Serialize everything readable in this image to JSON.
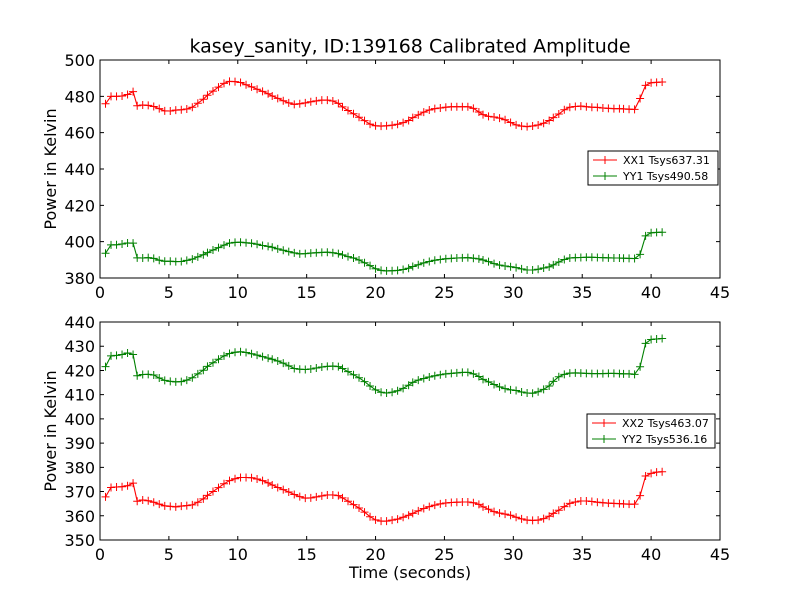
{
  "chart_data": [
    {
      "type": "line",
      "title": "kasey_sanity, ID:139168 Calibrated Amplitude",
      "xlabel": "",
      "ylabel": "Power in Kelvin",
      "xlim": [
        0,
        45
      ],
      "ylim": [
        380,
        500
      ],
      "xticks": [
        0,
        5,
        10,
        15,
        20,
        25,
        30,
        35,
        40,
        45
      ],
      "yticks": [
        380,
        400,
        420,
        440,
        460,
        480,
        500
      ],
      "x": [
        0.4,
        0.8,
        1.2,
        1.6,
        2.0,
        2.4,
        2.7,
        3.1,
        3.5,
        3.9,
        4.3,
        4.7,
        5.1,
        5.5,
        5.9,
        6.3,
        6.7,
        7.1,
        7.5,
        7.8,
        8.2,
        8.6,
        9.0,
        9.4,
        9.8,
        10.2,
        10.6,
        11.0,
        11.4,
        11.8,
        12.2,
        12.5,
        12.9,
        13.3,
        13.7,
        14.1,
        14.5,
        14.9,
        15.3,
        15.7,
        16.1,
        16.5,
        16.9,
        17.3,
        17.6,
        18.0,
        18.4,
        18.8,
        19.2,
        19.6,
        20.0,
        20.4,
        20.8,
        21.2,
        21.6,
        22.0,
        22.4,
        22.7,
        23.1,
        23.5,
        23.9,
        24.3,
        24.7,
        25.1,
        25.5,
        25.9,
        26.3,
        26.7,
        27.1,
        27.5,
        27.8,
        28.2,
        28.6,
        29.0,
        29.4,
        29.8,
        30.2,
        30.6,
        31.0,
        31.4,
        31.8,
        32.2,
        32.6,
        32.9,
        33.3,
        33.7,
        34.1,
        34.5,
        34.9,
        35.3,
        35.7,
        36.1,
        36.5,
        36.9,
        37.3,
        37.7,
        38.0,
        38.4,
        38.8,
        39.2,
        39.6,
        40.0,
        40.4,
        40.8
      ],
      "series": [
        {
          "name": "XX1 Tsys637.31",
          "color": "#ff0000",
          "values": [
            475.9,
            480.0,
            480.0,
            480.2,
            481.0,
            482.6,
            474.8,
            475.2,
            475.0,
            474.4,
            473.2,
            472.0,
            471.9,
            472.4,
            472.6,
            473.0,
            474.0,
            476.2,
            478.4,
            480.6,
            482.9,
            485.1,
            487.1,
            488.2,
            488.1,
            487.6,
            486.4,
            485.2,
            483.9,
            482.7,
            481.4,
            480.2,
            478.9,
            477.6,
            476.4,
            475.6,
            475.9,
            476.4,
            477.0,
            477.5,
            477.9,
            477.9,
            477.4,
            476.1,
            474.2,
            472.2,
            470.4,
            468.5,
            466.6,
            464.7,
            463.8,
            463.6,
            463.8,
            464.1,
            464.6,
            465.5,
            466.7,
            468.3,
            469.8,
            471.3,
            472.5,
            473.2,
            473.6,
            474.0,
            474.3,
            474.3,
            474.3,
            474.3,
            473.4,
            471.4,
            469.9,
            469.0,
            468.6,
            468.0,
            467.1,
            465.6,
            464.3,
            463.6,
            463.3,
            463.7,
            464.2,
            465.2,
            466.7,
            468.3,
            470.3,
            472.6,
            474.0,
            474.4,
            474.6,
            474.3,
            474.0,
            473.9,
            473.6,
            473.4,
            473.2,
            473.2,
            473.1,
            472.9,
            472.8,
            478.8,
            486.0,
            487.5,
            487.7,
            487.9
          ]
        },
        {
          "name": "YY1 Tsys490.58",
          "color": "#008000",
          "values": [
            393.6,
            398.2,
            398.3,
            398.7,
            399.3,
            399.2,
            391.1,
            391.0,
            391.2,
            390.8,
            389.8,
            389.2,
            389.2,
            389.0,
            389.1,
            389.7,
            390.4,
            391.6,
            392.8,
            394.0,
            395.4,
            396.7,
            398.1,
            399.2,
            399.6,
            399.7,
            399.4,
            399.1,
            398.6,
            397.9,
            397.4,
            396.9,
            396.0,
            395.3,
            394.5,
            393.8,
            393.3,
            393.4,
            393.7,
            393.9,
            394.1,
            394.2,
            393.9,
            393.4,
            392.7,
            391.8,
            391.0,
            389.9,
            388.4,
            386.8,
            385.1,
            384.2,
            383.9,
            384.0,
            384.2,
            384.7,
            385.4,
            386.3,
            387.3,
            388.3,
            389.1,
            389.8,
            390.2,
            390.6,
            390.8,
            391.0,
            391.1,
            391.2,
            390.9,
            390.5,
            389.9,
            389.0,
            387.9,
            387.1,
            386.6,
            386.2,
            385.7,
            385.0,
            384.4,
            384.4,
            384.8,
            385.5,
            386.1,
            387.2,
            388.8,
            390.2,
            391.0,
            391.2,
            391.3,
            391.4,
            391.4,
            391.3,
            391.2,
            391.1,
            391.0,
            391.0,
            390.9,
            390.8,
            390.7,
            393.0,
            403.2,
            404.9,
            405.1,
            405.2
          ]
        }
      ],
      "legend": "center-right"
    },
    {
      "type": "line",
      "title": "",
      "xlabel": "Time (seconds)",
      "ylabel": "Power in Kelvin",
      "xlim": [
        0,
        45
      ],
      "ylim": [
        350,
        440
      ],
      "xticks": [
        0,
        5,
        10,
        15,
        20,
        25,
        30,
        35,
        40,
        45
      ],
      "yticks": [
        350,
        360,
        370,
        380,
        390,
        400,
        410,
        420,
        430,
        440
      ],
      "x": [
        0.4,
        0.8,
        1.2,
        1.6,
        2.0,
        2.4,
        2.7,
        3.1,
        3.5,
        3.9,
        4.3,
        4.7,
        5.1,
        5.5,
        5.9,
        6.3,
        6.7,
        7.1,
        7.5,
        7.8,
        8.2,
        8.6,
        9.0,
        9.4,
        9.8,
        10.2,
        10.6,
        11.0,
        11.4,
        11.8,
        12.2,
        12.5,
        12.9,
        13.3,
        13.7,
        14.1,
        14.5,
        14.9,
        15.3,
        15.7,
        16.1,
        16.5,
        16.9,
        17.3,
        17.6,
        18.0,
        18.4,
        18.8,
        19.2,
        19.6,
        20.0,
        20.4,
        20.8,
        21.2,
        21.6,
        22.0,
        22.4,
        22.7,
        23.1,
        23.5,
        23.9,
        24.3,
        24.7,
        25.1,
        25.5,
        25.9,
        26.3,
        26.7,
        27.1,
        27.5,
        27.8,
        28.2,
        28.6,
        29.0,
        29.4,
        29.8,
        30.2,
        30.6,
        31.0,
        31.4,
        31.8,
        32.2,
        32.6,
        32.9,
        33.3,
        33.7,
        34.1,
        34.5,
        34.9,
        35.3,
        35.7,
        36.1,
        36.5,
        36.9,
        37.3,
        37.7,
        38.0,
        38.4,
        38.8,
        39.2,
        39.6,
        40.0,
        40.4,
        40.8
      ],
      "series": [
        {
          "name": "XX2 Tsys463.07",
          "color": "#ff0000",
          "values": [
            367.8,
            371.7,
            371.9,
            372.0,
            372.4,
            373.5,
            366.0,
            366.5,
            366.2,
            365.6,
            364.8,
            364.1,
            363.9,
            363.7,
            364.0,
            364.2,
            364.5,
            365.6,
            367.0,
            368.4,
            370.0,
            371.6,
            373.2,
            374.5,
            375.3,
            375.8,
            375.8,
            375.7,
            375.2,
            374.5,
            373.6,
            372.7,
            371.7,
            370.8,
            369.8,
            368.8,
            367.9,
            367.3,
            367.4,
            367.8,
            368.2,
            368.6,
            368.6,
            368.3,
            367.4,
            366.0,
            364.6,
            363.2,
            361.5,
            359.6,
            358.3,
            357.8,
            357.8,
            358.2,
            358.6,
            359.4,
            360.2,
            361.0,
            362.0,
            363.0,
            363.8,
            364.4,
            364.9,
            365.3,
            365.5,
            365.6,
            365.7,
            365.7,
            365.4,
            364.7,
            363.7,
            362.7,
            361.7,
            361.1,
            360.7,
            360.2,
            359.4,
            358.7,
            358.2,
            358.1,
            358.2,
            358.8,
            359.8,
            361.0,
            362.3,
            363.8,
            365.1,
            365.7,
            366.1,
            366.1,
            365.9,
            365.6,
            365.4,
            365.2,
            365.1,
            365.0,
            364.9,
            364.8,
            364.8,
            368.3,
            376.4,
            377.5,
            378.0,
            378.2
          ]
        },
        {
          "name": "YY2 Tsys536.16",
          "color": "#008000",
          "values": [
            421.6,
            426.0,
            426.2,
            426.6,
            427.2,
            426.6,
            417.8,
            418.3,
            418.4,
            418.1,
            416.9,
            415.9,
            415.5,
            415.3,
            415.4,
            416.0,
            417.0,
            418.6,
            420.1,
            421.7,
            423.2,
            424.6,
            426.0,
            427.0,
            427.5,
            427.7,
            427.4,
            426.9,
            426.3,
            425.7,
            425.1,
            424.6,
            423.9,
            423.0,
            421.9,
            420.8,
            420.5,
            420.4,
            420.6,
            421.0,
            421.4,
            421.7,
            421.8,
            421.6,
            420.8,
            419.5,
            418.2,
            417.0,
            415.4,
            413.6,
            412.0,
            411.0,
            410.7,
            411.0,
            411.6,
            412.6,
            413.9,
            415.1,
            416.0,
            416.7,
            417.3,
            417.8,
            418.2,
            418.6,
            418.8,
            419.0,
            419.2,
            419.2,
            418.6,
            417.5,
            416.3,
            415.3,
            414.2,
            413.2,
            412.5,
            412.0,
            411.7,
            411.1,
            410.7,
            410.6,
            411.2,
            412.2,
            413.6,
            415.5,
            417.4,
            418.4,
            418.9,
            419.0,
            418.9,
            418.8,
            418.7,
            418.7,
            418.7,
            418.8,
            418.8,
            418.7,
            418.6,
            418.6,
            418.4,
            421.5,
            431.2,
            432.8,
            433.0,
            433.2
          ]
        }
      ],
      "legend": "center-right"
    }
  ]
}
